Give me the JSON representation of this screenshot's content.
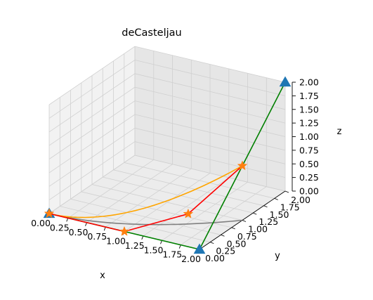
{
  "chart_data": {
    "type": "line",
    "projection": "3d",
    "title": "deCasteljau",
    "xlabel": "x",
    "ylabel": "y",
    "zlabel": "z",
    "xlim": [
      0,
      2
    ],
    "ylim": [
      0,
      2
    ],
    "zlim": [
      0,
      2
    ],
    "xticks": [
      "0.00",
      "0.25",
      "0.50",
      "0.75",
      "1.00",
      "1.25",
      "1.50",
      "1.75",
      "2.00"
    ],
    "yticks": [
      "0.00",
      "0.25",
      "0.50",
      "0.75",
      "1.00",
      "1.25",
      "1.50",
      "1.75",
      "2.00"
    ],
    "zticks": [
      "0.00",
      "0.25",
      "0.50",
      "0.75",
      "1.00",
      "1.25",
      "1.50",
      "1.75",
      "2.00"
    ],
    "grid": true,
    "series": [
      {
        "style": "control-polygon",
        "color": "#008000",
        "marker": "triangle",
        "marker_color": "#1f77b4",
        "points": [
          [
            0,
            0,
            0
          ],
          [
            2,
            0,
            0
          ],
          [
            2,
            2,
            2
          ]
        ]
      },
      {
        "style": "level-1",
        "color": "#ff0000",
        "marker": "star",
        "marker_color": "#ff7f0e",
        "points": [
          [
            0,
            0,
            0
          ],
          [
            1.0,
            0.0,
            0.0
          ],
          [
            1.65,
            0.35,
            0.35
          ],
          [
            2.0,
            1.0,
            1.0
          ]
        ]
      },
      {
        "style": "curve",
        "color": "#ffa500",
        "points": [
          [
            0,
            0,
            0
          ],
          [
            0.75,
            0.063,
            0.063
          ],
          [
            1.333,
            0.25,
            0.25
          ],
          [
            1.75,
            0.563,
            0.563
          ],
          [
            2.0,
            1.0,
            1.0
          ]
        ]
      },
      {
        "style": "shadow",
        "color": "#808080",
        "points": [
          [
            0,
            0,
            0
          ],
          [
            0.75,
            0.063,
            0
          ],
          [
            1.333,
            0.25,
            0
          ],
          [
            1.75,
            0.563,
            0
          ],
          [
            2.0,
            1.0,
            0
          ]
        ]
      }
    ]
  }
}
